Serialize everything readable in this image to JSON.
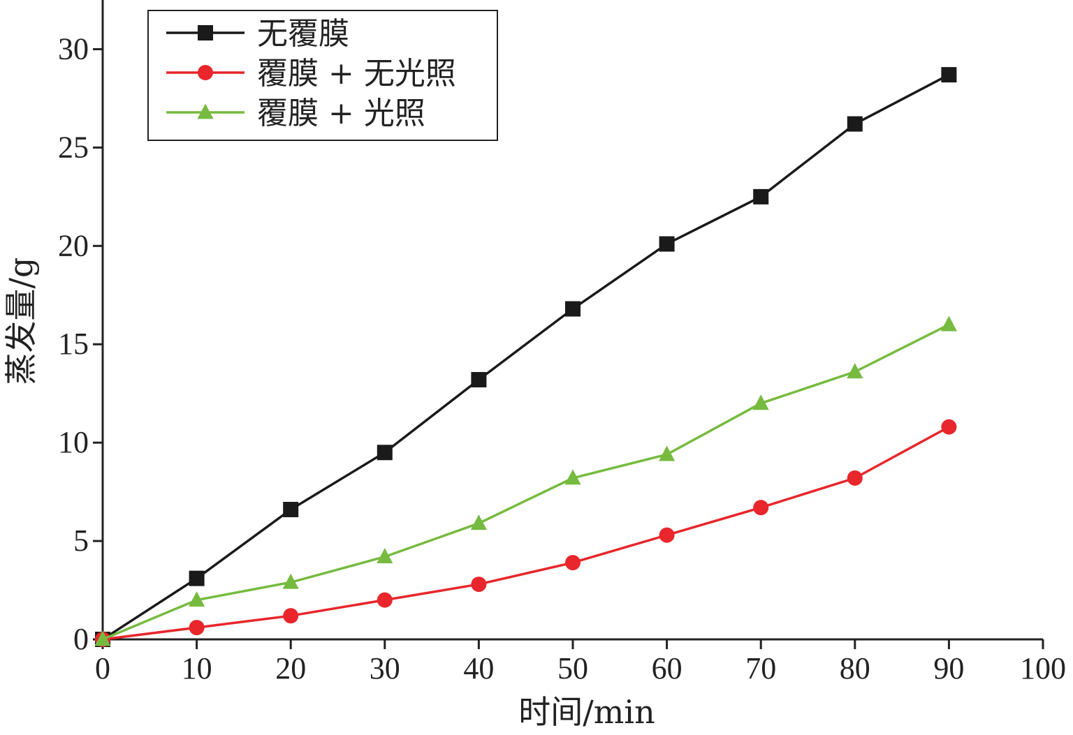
{
  "chart_data": {
    "type": "line",
    "title": "",
    "xlabel": "时间/min",
    "ylabel": "蒸发量/g",
    "xlim": [
      0,
      100
    ],
    "ylim": [
      0,
      32.5
    ],
    "x_ticks": [
      0,
      10,
      20,
      30,
      40,
      50,
      60,
      70,
      80,
      90,
      100
    ],
    "y_ticks": [
      0,
      5,
      10,
      15,
      20,
      25,
      30
    ],
    "grid": false,
    "legend_position": "top-left",
    "x": [
      0,
      10,
      20,
      30,
      40,
      50,
      60,
      70,
      80,
      90
    ],
    "series": [
      {
        "name": "无覆膜",
        "color": "#1a1a1a",
        "marker": "square",
        "values": [
          0,
          3.1,
          6.6,
          9.5,
          13.2,
          16.8,
          20.1,
          22.5,
          26.2,
          28.7
        ]
      },
      {
        "name": "覆膜 + 无光照",
        "color": "#e8262b",
        "marker": "circle",
        "values": [
          0,
          0.6,
          1.2,
          2.0,
          2.8,
          3.9,
          5.3,
          6.7,
          8.2,
          10.8
        ]
      },
      {
        "name": "覆膜 + 光照",
        "color": "#76bb3f",
        "marker": "triangle",
        "values": [
          0,
          2.0,
          2.9,
          4.2,
          5.9,
          8.2,
          9.4,
          12.0,
          13.6,
          16.0
        ]
      }
    ]
  }
}
